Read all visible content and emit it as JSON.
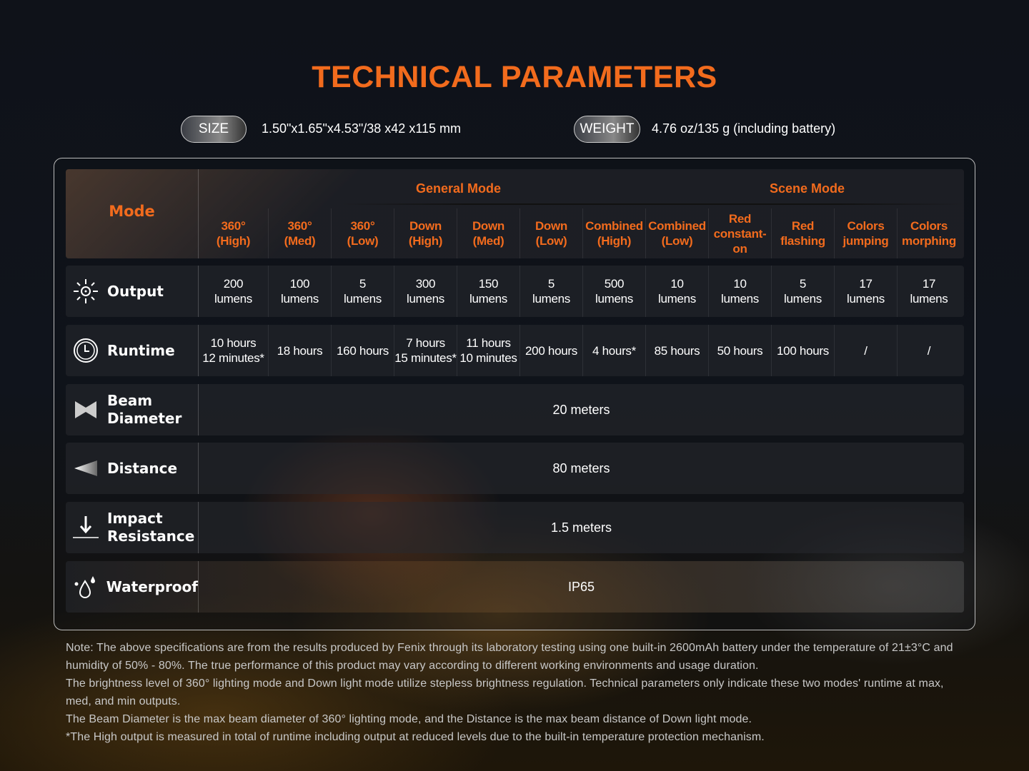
{
  "title": "TECHNICAL PARAMETERS",
  "size": {
    "label": "SIZE",
    "value": "1.50\"x1.65\"x4.53\"/38 x42 x115 mm"
  },
  "weight": {
    "label": "WEIGHT",
    "value": "4.76 oz/135 g (including battery)"
  },
  "table": {
    "mode_label": "Mode",
    "groups": [
      "General Mode",
      "Scene Mode"
    ],
    "columns": [
      [
        "360°",
        "(High)"
      ],
      [
        "360°",
        "(Med)"
      ],
      [
        "360°",
        "(Low)"
      ],
      [
        "Down",
        "(High)"
      ],
      [
        "Down",
        "(Med)"
      ],
      [
        "Down",
        "(Low)"
      ],
      [
        "Combined",
        "(High)"
      ],
      [
        "Combined",
        "(Low)"
      ],
      [
        "Red",
        "constant-",
        "on"
      ],
      [
        "Red",
        "flashing"
      ],
      [
        "Colors",
        "jumping"
      ],
      [
        "Colors",
        "morphing"
      ]
    ],
    "output": {
      "label": "Output",
      "icon": "sun-icon",
      "values": [
        [
          "200",
          "lumens"
        ],
        [
          "100",
          "lumens"
        ],
        [
          "5",
          "lumens"
        ],
        [
          "300",
          "lumens"
        ],
        [
          "150",
          "lumens"
        ],
        [
          "5",
          "lumens"
        ],
        [
          "500",
          "lumens"
        ],
        [
          "10",
          "lumens"
        ],
        [
          "10",
          "lumens"
        ],
        [
          "5",
          "lumens"
        ],
        [
          "17",
          "lumens"
        ],
        [
          "17",
          "lumens"
        ]
      ]
    },
    "runtime": {
      "label": "Runtime",
      "icon": "clock-icon",
      "values": [
        [
          "10 hours",
          "12 minutes*"
        ],
        [
          "18 hours"
        ],
        [
          "160 hours"
        ],
        [
          "7 hours",
          "15 minutes*"
        ],
        [
          "11 hours",
          "10 minutes"
        ],
        [
          "200 hours"
        ],
        [
          "4 hours*"
        ],
        [
          "85 hours"
        ],
        [
          "50 hours"
        ],
        [
          "100 hours"
        ],
        [
          "/"
        ],
        [
          "/"
        ]
      ]
    },
    "beam": {
      "label": [
        "Beam",
        "Diameter"
      ],
      "icon": "beam-diameter-icon",
      "value": "20 meters"
    },
    "distance": {
      "label": "Distance",
      "icon": "distance-icon",
      "value": "80 meters"
    },
    "impact": {
      "label": [
        "Impact",
        "Resistance"
      ],
      "icon": "impact-icon",
      "value": "1.5 meters"
    },
    "waterproof": {
      "label": "Waterproof",
      "icon": "water-drops-icon",
      "value": "IP65"
    }
  },
  "notes": [
    "Note: The above specifications are from the results produced by Fenix through its laboratory testing using one built-in 2600mAh battery under the temperature of 21±3°C and humidity of 50% - 80%. The true performance of this product may vary according to different working environments and usage duration.",
    "The brightness level of 360° lighting mode and Down light mode utilize stepless brightness regulation. Technical parameters only indicate these two modes' runtime at max, med, and min outputs.",
    "The Beam Diameter is the max beam diameter of 360° lighting mode, and the Distance is the max beam distance of Down light mode.",
    "*The High output is measured in total of runtime including output at reduced levels due to the built-in temperature protection mechanism."
  ],
  "colors": {
    "accent": "#f26b1d"
  }
}
